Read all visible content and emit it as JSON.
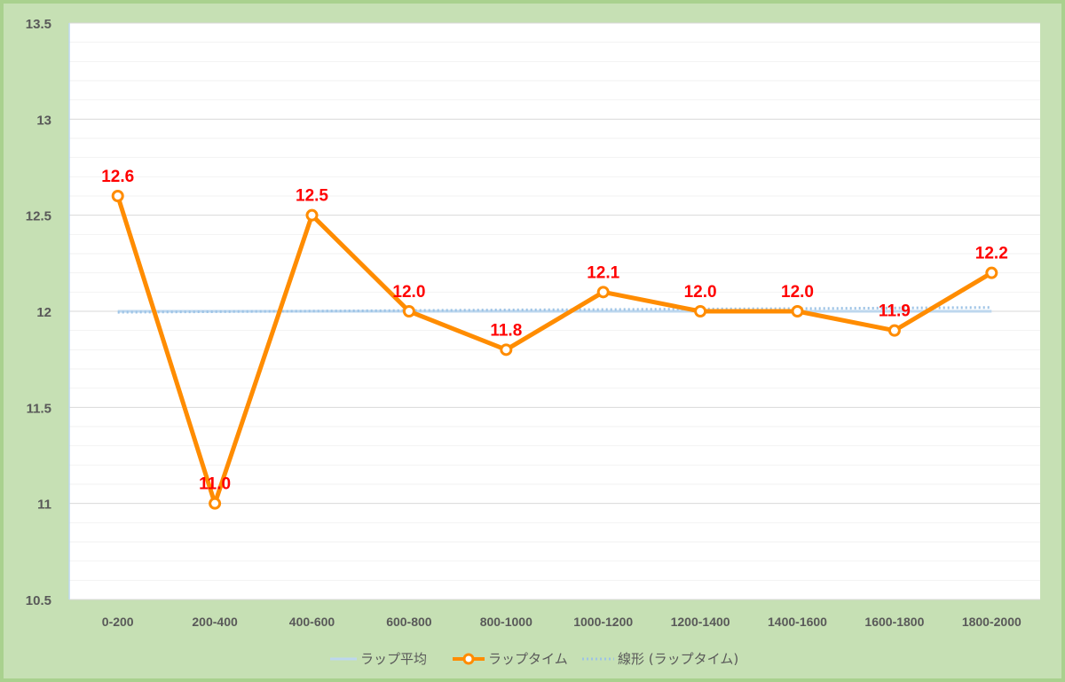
{
  "chart_data": {
    "type": "line",
    "categories": [
      "0-200",
      "200-400",
      "400-600",
      "600-800",
      "800-1000",
      "1000-1200",
      "1200-1400",
      "1400-1600",
      "1600-1800",
      "1800-2000"
    ],
    "series": [
      {
        "name": "ラップ平均",
        "values": [
          12.0,
          12.0,
          12.0,
          12.0,
          12.0,
          12.0,
          12.0,
          12.0,
          12.0,
          12.0
        ],
        "color": "#bdd7ee",
        "style": "solid"
      },
      {
        "name": "ラップタイム",
        "values": [
          12.6,
          11.0,
          12.5,
          12.0,
          11.8,
          12.1,
          12.0,
          12.0,
          11.9,
          12.2
        ],
        "data_labels": [
          "12.6",
          "11.0",
          "12.5",
          "12.0",
          "11.8",
          "12.1",
          "12.0",
          "12.0",
          "11.9",
          "12.2"
        ],
        "color": "#ff8c00",
        "marker": "circle"
      },
      {
        "name": "線形 (ラップタイム)",
        "values": [
          11.995,
          11.998,
          12.001,
          12.004,
          12.007,
          12.009,
          12.012,
          12.014,
          12.017,
          12.02
        ],
        "color": "#9dc3e6",
        "style": "dotted"
      }
    ],
    "ylim": [
      10.5,
      13.5
    ],
    "yticks": [
      10.5,
      11,
      11.5,
      12,
      12.5,
      13,
      13.5
    ],
    "ytick_labels": [
      "10.5",
      "11",
      "11.5",
      "12",
      "12.5",
      "13",
      "13.5"
    ],
    "grid": true,
    "legend": "bottom",
    "colors": {
      "background": "#c6e0b4",
      "border": "#a9d18e",
      "plot": "#ffffff",
      "label": "#ff0000"
    }
  }
}
